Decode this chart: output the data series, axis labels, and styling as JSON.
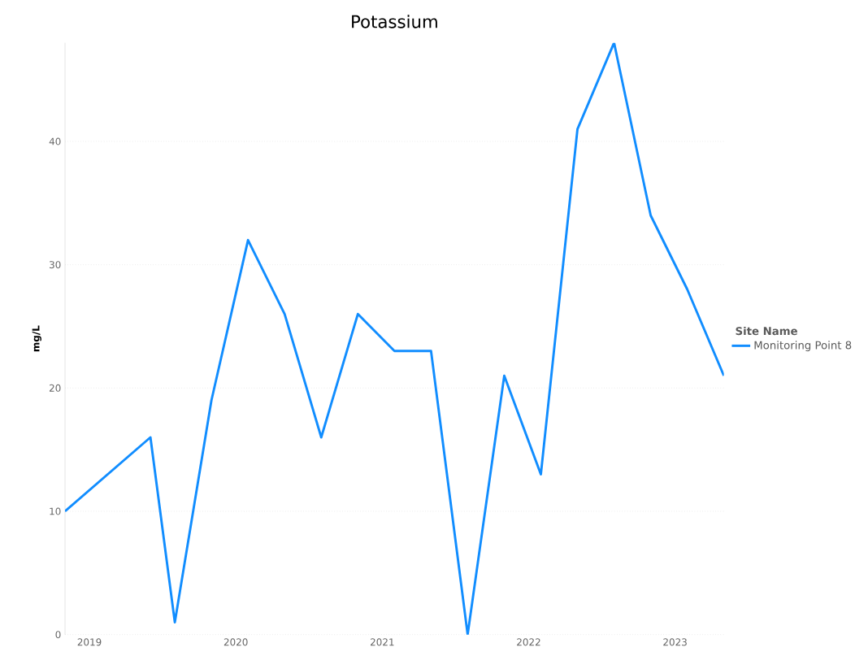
{
  "chart_data": {
    "type": "line",
    "title": "Potassium",
    "ylabel": "mg/L",
    "legend_title": "Site Name",
    "x": [
      "2018-11",
      "2019-06",
      "2019-08",
      "2019-11",
      "2020-02",
      "2020-05",
      "2020-08",
      "2020-11",
      "2021-02",
      "2021-05",
      "2021-08",
      "2021-11",
      "2022-02",
      "2022-05",
      "2022-08",
      "2022-11",
      "2023-02",
      "2023-05"
    ],
    "series": [
      {
        "name": "Monitoring Point 8",
        "color": "#118dff",
        "values": [
          10,
          16,
          1,
          19,
          32,
          26,
          16,
          26,
          23,
          23,
          0,
          21,
          13,
          41,
          48,
          34,
          28,
          21
        ]
      }
    ],
    "xlim": [
      "2018-11",
      "2023-05"
    ],
    "xticks": [
      {
        "value": "2019-01",
        "label": "2019"
      },
      {
        "value": "2020-01",
        "label": "2020"
      },
      {
        "value": "2021-01",
        "label": "2021"
      },
      {
        "value": "2022-01",
        "label": "2022"
      },
      {
        "value": "2023-01",
        "label": "2023"
      }
    ],
    "ylim": [
      0,
      48
    ],
    "yticks": [
      0,
      10,
      20,
      30,
      40
    ],
    "grid": "y",
    "legend": "right",
    "marker": "none",
    "line_style": "solid"
  }
}
